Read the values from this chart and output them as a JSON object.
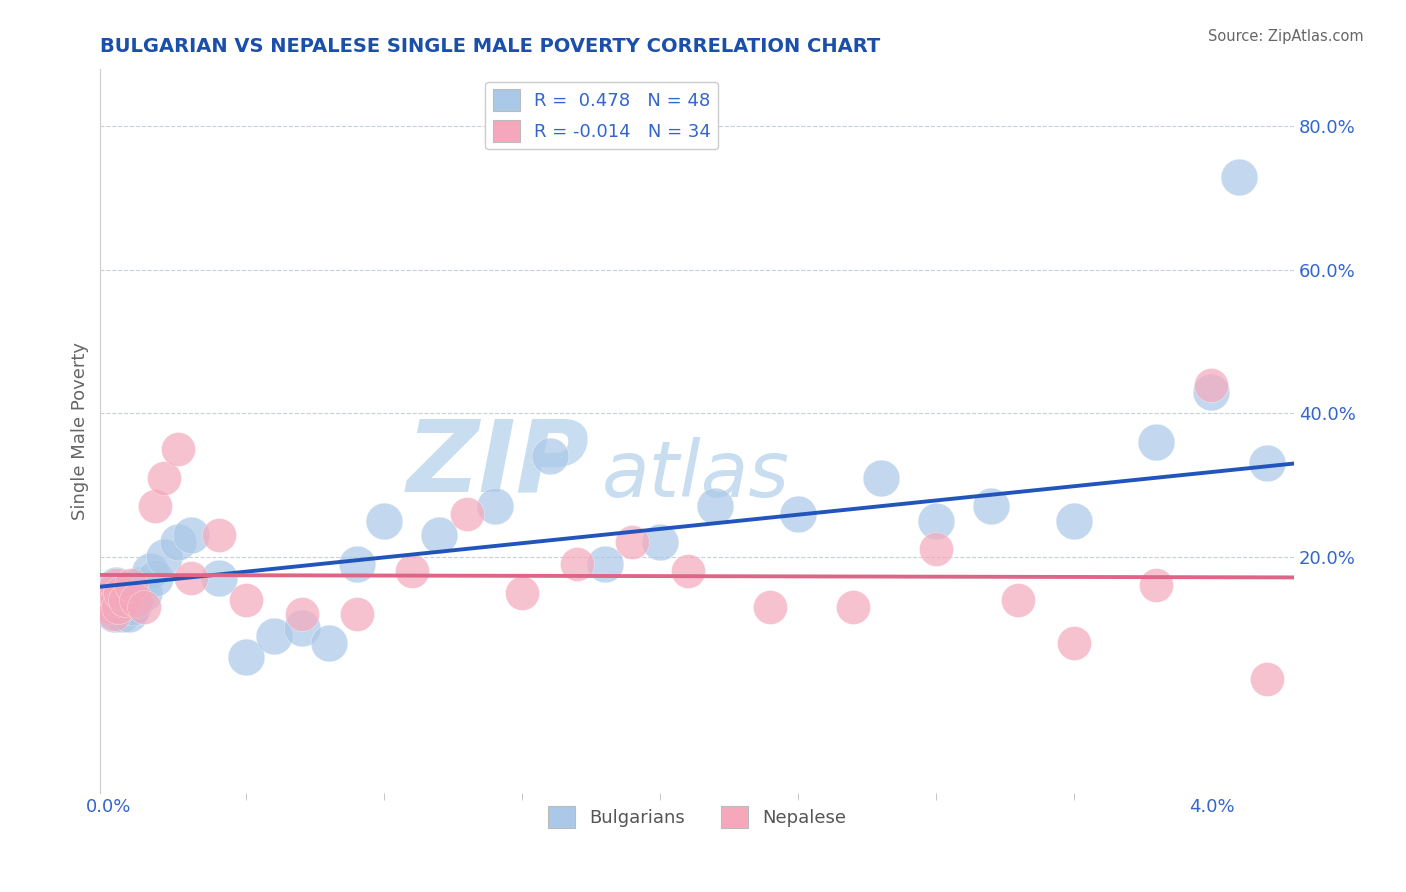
{
  "title": "BULGARIAN VS NEPALESE SINGLE MALE POVERTY CORRELATION CHART",
  "source": "Source: ZipAtlas.com",
  "ylabel": "Single Male Poverty",
  "r_bulgarian": 0.478,
  "n_bulgarian": 48,
  "r_nepalese": -0.014,
  "n_nepalese": 34,
  "bulgarian_color": "#aac8e8",
  "nepalese_color": "#f5a8bc",
  "bulgarian_line_color": "#2255bb",
  "nepalese_line_color": "#dd6688",
  "title_color": "#1a4faa",
  "axis_label_color": "#3366cc",
  "right_ytick_labels": [
    "80.0%",
    "60.0%",
    "40.0%",
    "20.0%"
  ],
  "right_ytick_values": [
    0.8,
    0.6,
    0.4,
    0.2
  ],
  "ylim": [
    -0.13,
    0.88
  ],
  "xlim": [
    -0.0003,
    0.043
  ],
  "bulgarian_x": [
    5e-05,
    0.0001,
    0.00015,
    0.0002,
    0.00025,
    0.0003,
    0.00035,
    0.0004,
    0.00045,
    0.0005,
    0.00055,
    0.0006,
    0.00065,
    0.0007,
    0.00075,
    0.0008,
    0.00085,
    0.0009,
    0.001,
    0.0011,
    0.0013,
    0.0015,
    0.0017,
    0.002,
    0.0025,
    0.003,
    0.004,
    0.005,
    0.006,
    0.007,
    0.008,
    0.009,
    0.01,
    0.012,
    0.014,
    0.016,
    0.018,
    0.02,
    0.022,
    0.025,
    0.028,
    0.03,
    0.032,
    0.035,
    0.038,
    0.04,
    0.041,
    0.042
  ],
  "bulgarian_y": [
    0.14,
    0.13,
    0.15,
    0.12,
    0.16,
    0.14,
    0.13,
    0.15,
    0.14,
    0.12,
    0.13,
    0.14,
    0.15,
    0.13,
    0.12,
    0.14,
    0.15,
    0.13,
    0.14,
    0.16,
    0.15,
    0.18,
    0.17,
    0.2,
    0.22,
    0.23,
    0.17,
    0.06,
    0.09,
    0.1,
    0.08,
    0.19,
    0.25,
    0.23,
    0.27,
    0.34,
    0.19,
    0.22,
    0.27,
    0.26,
    0.31,
    0.25,
    0.27,
    0.25,
    0.36,
    0.43,
    0.73,
    0.33
  ],
  "nepalese_x": [
    5e-05,
    0.0001,
    0.00015,
    0.0002,
    0.00025,
    0.0003,
    0.00035,
    0.0004,
    0.0006,
    0.0008,
    0.001,
    0.0013,
    0.0017,
    0.002,
    0.0025,
    0.003,
    0.004,
    0.005,
    0.007,
    0.009,
    0.011,
    0.013,
    0.015,
    0.017,
    0.019,
    0.021,
    0.024,
    0.027,
    0.03,
    0.033,
    0.035,
    0.038,
    0.04,
    0.042
  ],
  "nepalese_y": [
    0.14,
    0.13,
    0.15,
    0.12,
    0.16,
    0.14,
    0.13,
    0.15,
    0.14,
    0.16,
    0.14,
    0.13,
    0.27,
    0.31,
    0.35,
    0.17,
    0.23,
    0.14,
    0.12,
    0.12,
    0.18,
    0.26,
    0.15,
    0.19,
    0.22,
    0.18,
    0.13,
    0.13,
    0.21,
    0.14,
    0.08,
    0.16,
    0.44,
    0.03
  ],
  "watermark_zip": "ZIP",
  "watermark_atlas": "atlas",
  "watermark_color_zip": "#c8ddf0",
  "watermark_color_atlas": "#c8ddf0",
  "background_color": "#ffffff",
  "grid_color": "#c8cfd8",
  "legend_label1": "R =  0.478   N = 48",
  "legend_label2": "R = -0.014   N = 34"
}
